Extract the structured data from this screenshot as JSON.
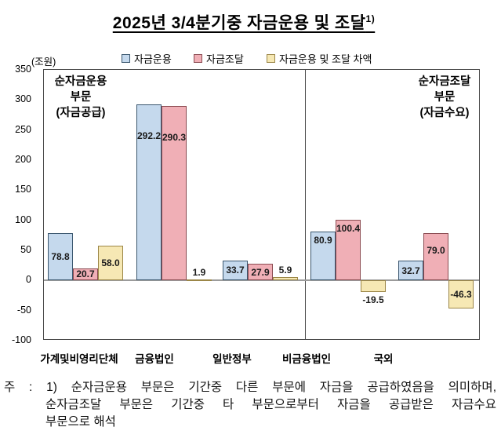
{
  "title": {
    "text": "2025년 3/4분기중 자금운용 및 조달",
    "superscript": "1)"
  },
  "unit_label": "(조원)",
  "chart_data": {
    "type": "bar",
    "title": "2025년 3/4분기중 자금운용 및 조달",
    "unit": "조원",
    "ylim": [
      -100,
      350
    ],
    "ytick_interval": 50,
    "yticks": [
      350,
      300,
      250,
      200,
      150,
      100,
      50,
      0,
      -50,
      -100
    ],
    "grid": false,
    "legend_position": "top",
    "legend": [
      {
        "name": "자금운용",
        "fill": "#C5D9ED",
        "border": "#3A566E"
      },
      {
        "name": "자금조달",
        "fill": "#F0AFB6",
        "border": "#8A4A50"
      },
      {
        "name": "자금운용 및 조달 차액",
        "fill": "#F6E8B4",
        "border": "#9B8647"
      }
    ],
    "sections": [
      {
        "label_lines": [
          "순자금운용",
          "부문",
          "(자금공급)"
        ],
        "categories": [
          "가계및비영리단체",
          "금융법인",
          "일반정부"
        ]
      },
      {
        "label_lines": [
          "순자금조달",
          "부문",
          "(자금수요)"
        ],
        "categories": [
          "비금융법인",
          "국외"
        ]
      }
    ],
    "categories": [
      "가계및비영리단체",
      "금융법인",
      "일반정부",
      "비금융법인",
      "국외"
    ],
    "series": [
      {
        "name": "자금운용",
        "values": [
          78.8,
          292.2,
          33.7,
          80.9,
          32.7
        ]
      },
      {
        "name": "자금조달",
        "values": [
          20.7,
          290.3,
          27.9,
          100.4,
          79.0
        ]
      },
      {
        "name": "자금운용 및 조달 차액",
        "values": [
          58.0,
          1.9,
          5.9,
          -19.5,
          -46.3
        ]
      }
    ],
    "groups": [
      {
        "category": "가계및비영리단체",
        "bars": [
          {
            "series": "자금운용",
            "value": 78.8,
            "label": "78.8",
            "label_pos": "center"
          },
          {
            "series": "자금조달",
            "value": 20.7,
            "label": "20.7",
            "label_pos": "center"
          },
          {
            "series": "자금운용 및 조달 차액",
            "value": 58.0,
            "label": "58.0",
            "label_pos": "center"
          }
        ]
      },
      {
        "category": "금융법인",
        "bars": [
          {
            "series": "자금운용",
            "value": 292.2,
            "label": "292.2",
            "label_pos": "midhigh"
          },
          {
            "series": "자금조달",
            "value": 290.3,
            "label": "290.3",
            "label_pos": "midhigh"
          },
          {
            "series": "자금운용 및 조달 차액",
            "value": 1.9,
            "label": "1.9",
            "label_pos": "above"
          }
        ]
      },
      {
        "category": "일반정부",
        "bars": [
          {
            "series": "자금운용",
            "value": 33.7,
            "label": "33.7",
            "label_pos": "center"
          },
          {
            "series": "자금조달",
            "value": 27.9,
            "label": "27.9",
            "label_pos": "center"
          },
          {
            "series": "자금운용 및 조달 차액",
            "value": 5.9,
            "label": "5.9",
            "label_pos": "above"
          }
        ]
      },
      {
        "category": "비금융법인",
        "bars": [
          {
            "series": "자금운용",
            "value": 80.9,
            "label": "80.9",
            "label_pos": "top"
          },
          {
            "series": "자금조달",
            "value": 100.4,
            "label": "100.4",
            "label_pos": "top"
          },
          {
            "series": "자금운용 및 조달 차액",
            "value": -19.5,
            "label": "-19.5",
            "label_pos": "below"
          }
        ]
      },
      {
        "category": "국외",
        "bars": [
          {
            "series": "자금운용",
            "value": 32.7,
            "label": "32.7",
            "label_pos": "center"
          },
          {
            "series": "자금조달",
            "value": 79.0,
            "label": "79.0",
            "label_pos": "upper"
          },
          {
            "series": "자금운용 및 조달 차액",
            "value": -46.3,
            "label": "-46.3",
            "label_pos": "center"
          }
        ]
      }
    ],
    "colors": {
      "zero_line": "#9B9B9B",
      "axis_border": "#4A4A4A",
      "label_text": "#1A1A1A"
    }
  },
  "note": {
    "lines": [
      "주 : 1) 순자금운용 부문은 기간중 다른 부문에 자금을 공급하였음을 의미하며,",
      "순자금조달 부문은 기간중 타 부문으로부터 자금을 공급받은 자금수요",
      "부문으로 해석"
    ]
  }
}
